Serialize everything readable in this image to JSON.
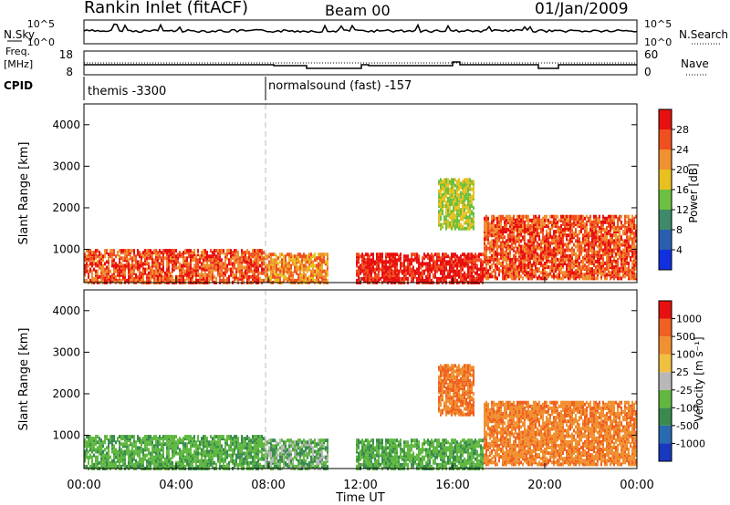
{
  "header": {
    "title_left": "Rankin Inlet (fitACF)",
    "title_center": "Beam 00",
    "title_right": "01/Jan/2009"
  },
  "top_panels": {
    "nsky_label": "N.Sky",
    "nsearch_label": "N.Search",
    "exp_top": "10^5",
    "exp_bottom": "10^0",
    "freq_label": "Freq.",
    "freq_unit": "[MHz]",
    "freq_ticks": [
      "18",
      "8"
    ],
    "nave_label": "Nave",
    "nave_ticks": [
      "60",
      "0"
    ],
    "cpid_label": "CPID",
    "cpid_left": "themis -3300",
    "cpid_right": "normalsound (fast) -157"
  },
  "chart_data": [
    {
      "type": "heatmap",
      "name": "power-panel",
      "xlabel": "",
      "ylabel": "Slant Range [km]",
      "yticks": [
        "1000",
        "2000",
        "3000",
        "4000"
      ],
      "ylim": [
        200,
        4500
      ],
      "colorbar_label": "Power [dB]",
      "colorbar_ticks": [
        "4",
        "8",
        "12",
        "16",
        "20",
        "24",
        "28"
      ],
      "colorbar_colors": [
        "#1030e0",
        "#2a5fb0",
        "#3e8a6a",
        "#6cc040",
        "#e8c020",
        "#f09030",
        "#f05020",
        "#e81010"
      ]
    },
    {
      "type": "heatmap",
      "name": "velocity-panel",
      "xlabel": "Time UT",
      "ylabel": "Slant Range [km]",
      "yticks": [
        "1000",
        "2000",
        "3000",
        "4000"
      ],
      "ylim": [
        200,
        4500
      ],
      "xticks": [
        "00:00",
        "04:00",
        "08:00",
        "12:00",
        "16:00",
        "20:00",
        "00:00"
      ],
      "colorbar_label": "Velocity [m s⁻¹]",
      "colorbar_ticks": [
        "1000",
        "500",
        "100",
        "25",
        "-25",
        "-100",
        "-500",
        "-1000"
      ],
      "colorbar_colors": [
        "#1838c0",
        "#2a6ab0",
        "#3a8a50",
        "#60b840",
        "#b8b8b8",
        "#f0c040",
        "#f09030",
        "#f06020",
        "#e81010"
      ]
    }
  ]
}
